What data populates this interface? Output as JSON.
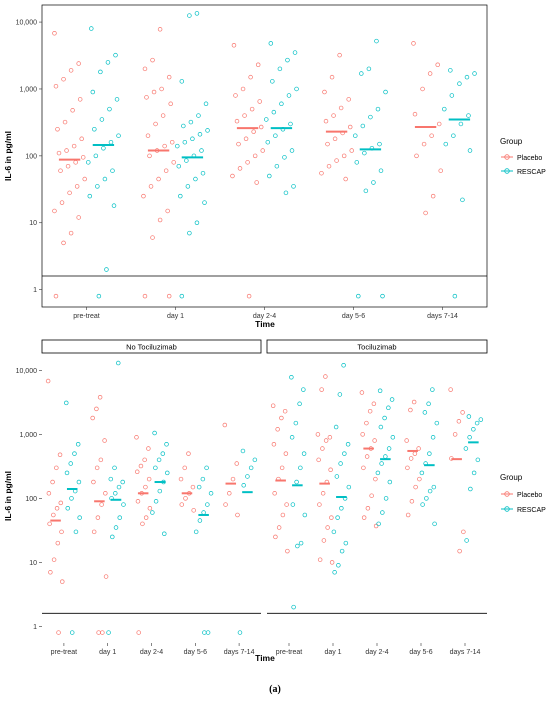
{
  "figure": {
    "caption": "(a)"
  },
  "colors": {
    "Placebo": "#F8766D",
    "RESCAP": "#00BFC4"
  },
  "legend": {
    "title": "Group",
    "items": [
      "Placebo",
      "RESCAP"
    ]
  },
  "chart_data": [
    {
      "type": "scatter",
      "xlabel": "Time",
      "ylabel": "IL-6 in pg/ml",
      "yscale": "log10",
      "ylim": [
        0.55,
        18000
      ],
      "yticks": [
        1,
        10,
        100,
        1000,
        10000
      ],
      "ytick_labels": [
        "1",
        "10",
        "100",
        "1,000",
        "10,000"
      ],
      "reference_line": 1.6,
      "legend_position": "right",
      "panels": [
        {
          "label": "",
          "categories": [
            "pre-treat",
            "day 1",
            "day 2-4",
            "day 5-6",
            "days 7-14"
          ],
          "series": [
            {
              "name": "Placebo",
              "median": [
                88,
                120,
                260,
                230,
                270
              ],
              "values": [
                [
                  6800,
                  2400,
                  1900,
                  1400,
                  1100,
                  700,
                  480,
                  320,
                  250,
                  180,
                  140,
                  120,
                  110,
                  95,
                  80,
                  70,
                  60,
                  45,
                  35,
                  28,
                  20,
                  15,
                  12,
                  7,
                  5,
                  0.8
                ],
                [
                  7800,
                  2700,
                  2000,
                  1500,
                  1000,
                  900,
                  750,
                  600,
                  400,
                  300,
                  200,
                  160,
                  140,
                  120,
                  100,
                  80,
                  60,
                  45,
                  35,
                  25,
                  15,
                  11,
                  6,
                  0.8,
                  0.8
                ],
                [
                  4500,
                  2300,
                  1500,
                  1000,
                  800,
                  650,
                  500,
                  400,
                  330,
                  270,
                  230,
                  180,
                  150,
                  120,
                  100,
                  80,
                  65,
                  50,
                  40,
                  0.8
                ],
                [
                  3200,
                  1500,
                  900,
                  700,
                  520,
                  400,
                  330,
                  270,
                  220,
                  180,
                  150,
                  120,
                  100,
                  85,
                  70,
                  55,
                  45
                ],
                [
                  4800,
                  2300,
                  1700,
                  1000,
                  420,
                  300,
                  200,
                  150,
                  100,
                  60,
                  25,
                  14
                ]
              ]
            },
            {
              "name": "RESCAP",
              "median": [
                145,
                95,
                260,
                125,
                350
              ],
              "values": [
                [
                  8000,
                  3200,
                  2500,
                  1800,
                  900,
                  700,
                  500,
                  350,
                  250,
                  200,
                  160,
                  130,
                  100,
                  80,
                  60,
                  45,
                  35,
                  25,
                  18,
                  2,
                  0.8
                ],
                [
                  13500,
                  12500,
                  1300,
                  600,
                  400,
                  320,
                  280,
                  240,
                  210,
                  180,
                  160,
                  140,
                  120,
                  100,
                  85,
                  70,
                  55,
                  45,
                  35,
                  25,
                  20,
                  10,
                  7,
                  0.8
                ],
                [
                  4800,
                  3500,
                  2700,
                  2000,
                  1300,
                  1000,
                  800,
                  600,
                  450,
                  350,
                  300,
                  250,
                  200,
                  160,
                  120,
                  95,
                  70,
                  50,
                  35,
                  28
                ],
                [
                  5200,
                  2000,
                  1700,
                  900,
                  500,
                  380,
                  280,
                  200,
                  150,
                  130,
                  110,
                  80,
                  60,
                  40,
                  30,
                  0.8,
                  0.8
                ],
                [
                  1900,
                  1700,
                  1500,
                  1200,
                  800,
                  500,
                  400,
                  300,
                  200,
                  150,
                  120,
                  22,
                  0.8
                ]
              ]
            }
          ]
        }
      ]
    },
    {
      "type": "scatter",
      "xlabel": "Time",
      "ylabel": "IL-6 in pg/ml",
      "yscale": "log10",
      "ylim": [
        0.55,
        18000
      ],
      "yticks": [
        1,
        10,
        100,
        1000,
        10000
      ],
      "ytick_labels": [
        "1",
        "10",
        "100",
        "1,000",
        "10,000"
      ],
      "reference_line": 1.6,
      "legend_position": "right",
      "panels": [
        {
          "label": "No Tociluzimab",
          "categories": [
            "pre-treat",
            "day 1",
            "day 2-4",
            "day 5-6",
            "days 7-14"
          ],
          "series": [
            {
              "name": "Placebo",
              "median": [
                45,
                90,
                120,
                120,
                170
              ],
              "values": [
                [
                  6800,
                  480,
                  300,
                  180,
                  120,
                  85,
                  70,
                  55,
                  40,
                  30,
                  20,
                  11,
                  7,
                  5,
                  0.8
                ],
                [
                  3800,
                  2500,
                  1800,
                  800,
                  400,
                  300,
                  180,
                  120,
                  80,
                  50,
                  30,
                  6,
                  0.8,
                  0.8
                ],
                [
                  900,
                  600,
                  400,
                  320,
                  260,
                  200,
                  150,
                  120,
                  90,
                  70,
                  50,
                  40,
                  0.8
                ],
                [
                  500,
                  300,
                  200,
                  150,
                  120,
                  100,
                  80,
                  65
                ],
                [
                  1400,
                  350,
                  200,
                  120,
                  80,
                  55
                ]
              ]
            },
            {
              "name": "RESCAP",
              "median": [
                140,
                95,
                180,
                55,
                125
              ],
              "values": [
                [
                  3100,
                  700,
                  500,
                  350,
                  250,
                  180,
                  130,
                  100,
                  70,
                  50,
                  30,
                  0.8
                ],
                [
                  13000,
                  300,
                  200,
                  180,
                  150,
                  120,
                  100,
                  80,
                  50,
                  35,
                  25,
                  0.8
                ],
                [
                  1050,
                  700,
                  500,
                  400,
                  300,
                  250,
                  180,
                  130,
                  90,
                  60,
                  28
                ],
                [
                  300,
                  200,
                  150,
                  120,
                  80,
                  60,
                  45,
                  30,
                  0.8,
                  0.8
                ],
                [
                  550,
                  400,
                  300,
                  220,
                  160,
                  0.8
                ]
              ]
            }
          ]
        },
        {
          "label": "Tociluzimab",
          "categories": [
            "pre-treat",
            "day 1",
            "day 2-4",
            "day 5-6",
            "days 7-14"
          ],
          "series": [
            {
              "name": "Placebo",
              "median": [
                190,
                170,
                600,
                550,
                410
              ],
              "values": [
                [
                  2800,
                  2300,
                  1800,
                  1200,
                  700,
                  500,
                  300,
                  200,
                  120,
                  80,
                  55,
                  35,
                  25,
                  15
                ],
                [
                  8000,
                  5000,
                  1000,
                  900,
                  800,
                  600,
                  400,
                  280,
                  180,
                  120,
                  80,
                  50,
                  35,
                  22,
                  11,
                  10
                ],
                [
                  4500,
                  3000,
                  2300,
                  1500,
                  1000,
                  800,
                  600,
                  450,
                  300,
                  200,
                  110,
                  70,
                  50,
                  37
                ],
                [
                  3200,
                  2400,
                  800,
                  600,
                  500,
                  420,
                  300,
                  200,
                  150,
                  90,
                  55
                ],
                [
                  5000,
                  2200,
                  1600,
                  1000,
                  420,
                  30,
                  15
                ]
              ]
            },
            {
              "name": "RESCAP",
              "median": [
                160,
                105,
                410,
                330,
                750
              ],
              "values": [
                [
                  7800,
                  5000,
                  3000,
                  1500,
                  900,
                  500,
                  300,
                  180,
                  80,
                  55,
                  20,
                  18,
                  2
                ],
                [
                  12000,
                  4200,
                  1300,
                  700,
                  500,
                  350,
                  220,
                  150,
                  100,
                  70,
                  50,
                  30,
                  20,
                  15,
                  9,
                  7
                ],
                [
                  4800,
                  3500,
                  2600,
                  1800,
                  1300,
                  900,
                  600,
                  450,
                  350,
                  250,
                  180,
                  100,
                  60,
                  40
                ],
                [
                  5000,
                  3000,
                  2200,
                  1500,
                  900,
                  500,
                  350,
                  250,
                  150,
                  130,
                  100,
                  80,
                  40
                ],
                [
                  1900,
                  1700,
                  1500,
                  1200,
                  900,
                  600,
                  400,
                  250,
                  140,
                  22
                ]
              ]
            }
          ]
        }
      ]
    }
  ]
}
